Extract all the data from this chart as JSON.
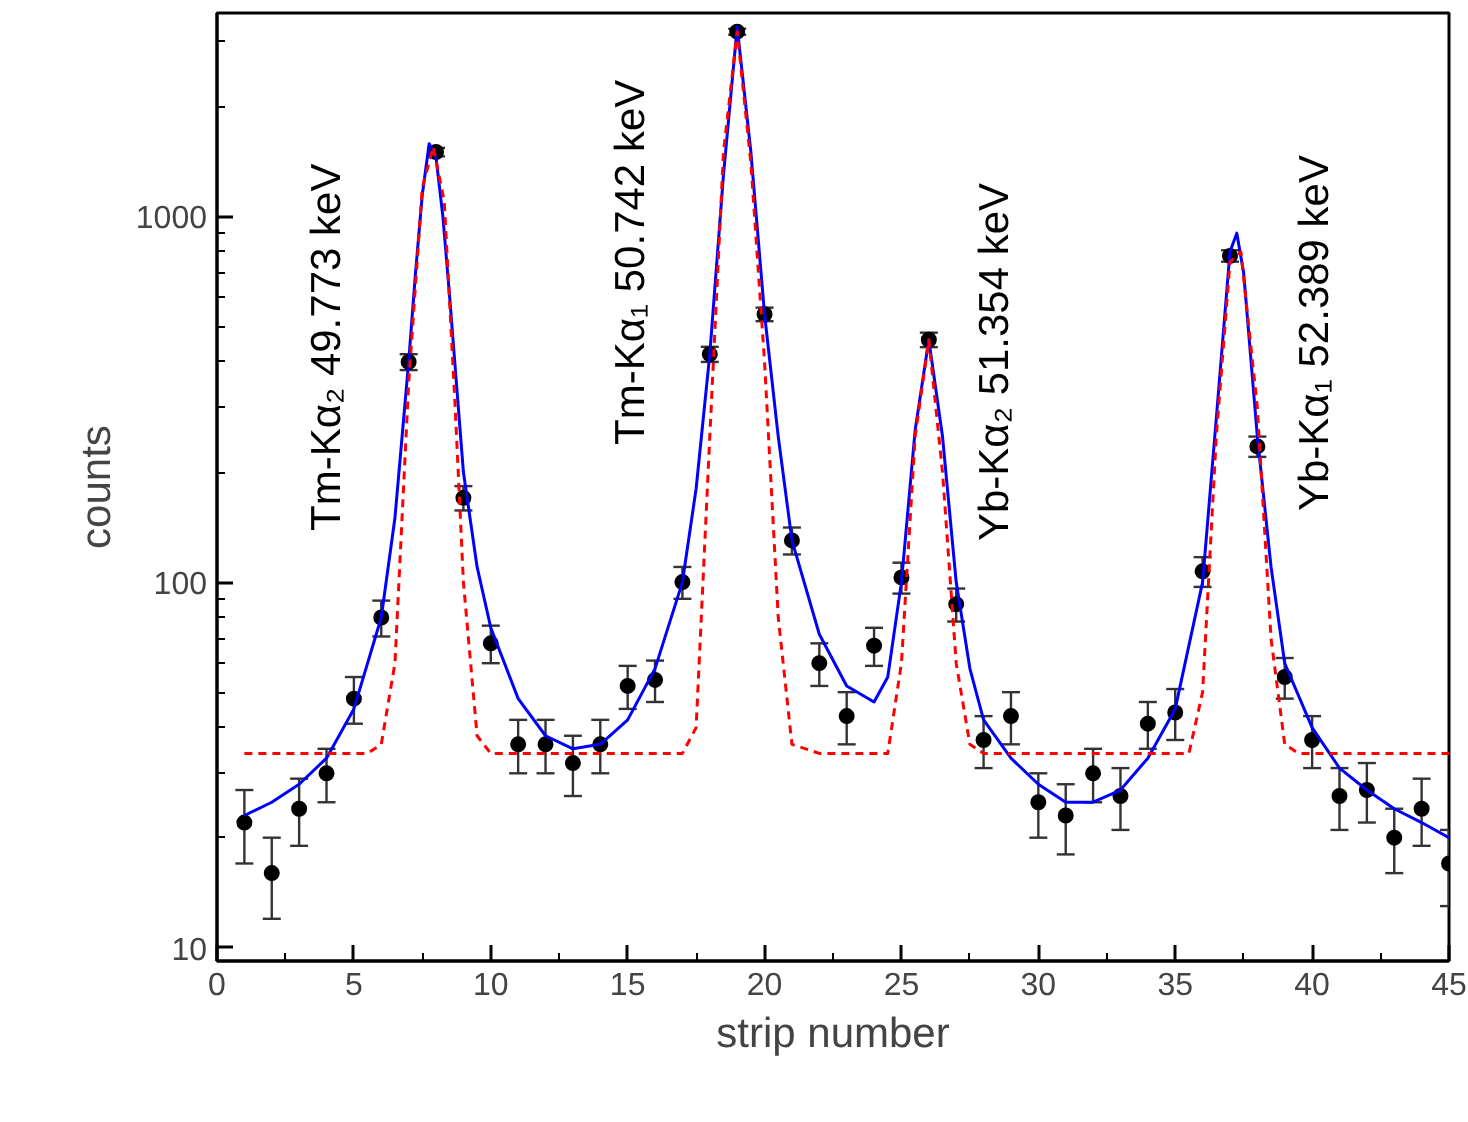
{
  "chart_data": {
    "type": "scatter",
    "xlabel": "strip number",
    "ylabel": "counts",
    "log": "y",
    "xlim": [
      0,
      45
    ],
    "xticks": [
      0,
      5,
      10,
      15,
      20,
      25,
      30,
      35,
      40,
      45
    ],
    "ylim": [
      9.2,
      3600
    ],
    "yticks": [
      10,
      100,
      1000
    ],
    "grid": false,
    "marker": "circle",
    "series": [
      {
        "color": "#000000",
        "x": [
          1,
          2,
          3,
          4,
          5,
          6,
          7,
          8,
          9,
          10,
          11,
          12,
          13,
          14,
          15,
          16,
          17,
          18,
          19,
          20,
          21,
          22,
          23,
          24,
          25,
          26,
          27,
          28,
          29,
          30,
          31,
          32,
          33,
          34,
          35,
          36,
          37,
          38,
          39,
          40,
          41,
          42,
          43,
          44,
          45
        ],
        "values": [
          22,
          16,
          24,
          30,
          48,
          80,
          400,
          1500,
          170,
          68,
          36,
          36,
          32,
          36,
          52,
          54,
          100,
          420,
          3200,
          540,
          130,
          60,
          43,
          67,
          103,
          460,
          87,
          37,
          43,
          25,
          23,
          30,
          26,
          41,
          44,
          107,
          780,
          235,
          55,
          37,
          26,
          27,
          20,
          24,
          17
        ],
        "errors": [
          5,
          4,
          5,
          5,
          7,
          9,
          20,
          40,
          13,
          8,
          6,
          6,
          6,
          6,
          7,
          7,
          10,
          20,
          60,
          23,
          11,
          8,
          7,
          8,
          10,
          21,
          9,
          6,
          7,
          5,
          5,
          5,
          5,
          6,
          7,
          10,
          28,
          15,
          7,
          6,
          5,
          5,
          4,
          5,
          4
        ]
      },
      {
        "type": "line",
        "line_style": "solid",
        "marker": "none",
        "color": "#0000ff",
        "x": [
          1,
          2,
          3,
          4,
          5,
          6,
          6.5,
          7,
          7.25,
          7.5,
          7.75,
          8,
          8.25,
          8.5,
          9,
          9.5,
          10,
          11,
          12,
          13,
          14,
          15,
          16,
          17,
          17.5,
          18,
          18.5,
          19,
          19.5,
          20,
          20.5,
          21,
          22,
          23,
          24,
          24.5,
          25,
          25.5,
          26,
          26.5,
          27,
          27.5,
          28,
          29,
          30,
          31,
          32,
          33,
          34,
          35,
          36,
          36.5,
          37,
          37.25,
          37.5,
          38,
          38.5,
          39,
          40,
          41,
          42,
          43,
          44,
          45
        ],
        "values": [
          23,
          25,
          28,
          33,
          45,
          80,
          150,
          400,
          700,
          1150,
          1580,
          1450,
          1000,
          600,
          200,
          110,
          75,
          48,
          38,
          35,
          36,
          42,
          58,
          100,
          180,
          420,
          1300,
          3300,
          1500,
          540,
          250,
          130,
          72,
          52,
          47,
          55,
          100,
          260,
          460,
          250,
          100,
          58,
          42,
          33,
          28,
          25,
          25,
          27,
          33,
          45,
          100,
          280,
          800,
          900,
          700,
          250,
          110,
          60,
          40,
          31,
          27,
          24,
          22,
          20
        ]
      },
      {
        "type": "line",
        "line_style": "dashed",
        "marker": "none",
        "color": "#ff0000",
        "x": [
          1,
          5.5,
          6,
          6.5,
          7,
          7.5,
          7.9,
          8.3,
          8.7,
          9,
          9.5,
          10,
          17,
          17.5,
          18,
          18.5,
          19,
          19.5,
          20,
          20.5,
          21,
          22,
          24.5,
          25,
          25.5,
          26,
          26.5,
          27,
          27.5,
          28,
          35.5,
          36,
          36.5,
          37,
          37.4,
          38,
          38.5,
          39,
          39.5,
          45
        ],
        "values": [
          34,
          34,
          36,
          60,
          350,
          1200,
          1550,
          1100,
          300,
          100,
          38,
          34,
          34,
          40,
          250,
          1500,
          3200,
          1400,
          400,
          80,
          36,
          34,
          34,
          60,
          250,
          460,
          200,
          60,
          36,
          34,
          34,
          50,
          250,
          750,
          800,
          300,
          70,
          36,
          34,
          34
        ]
      }
    ],
    "annotations": [
      "Tm-Kα₂ 49.773 keV",
      "Tm-Kα₁ 50.742 keV",
      "Yb-Kα₂ 51.354 keV",
      "Yb-Kα₁ 52.389 keV"
    ]
  }
}
